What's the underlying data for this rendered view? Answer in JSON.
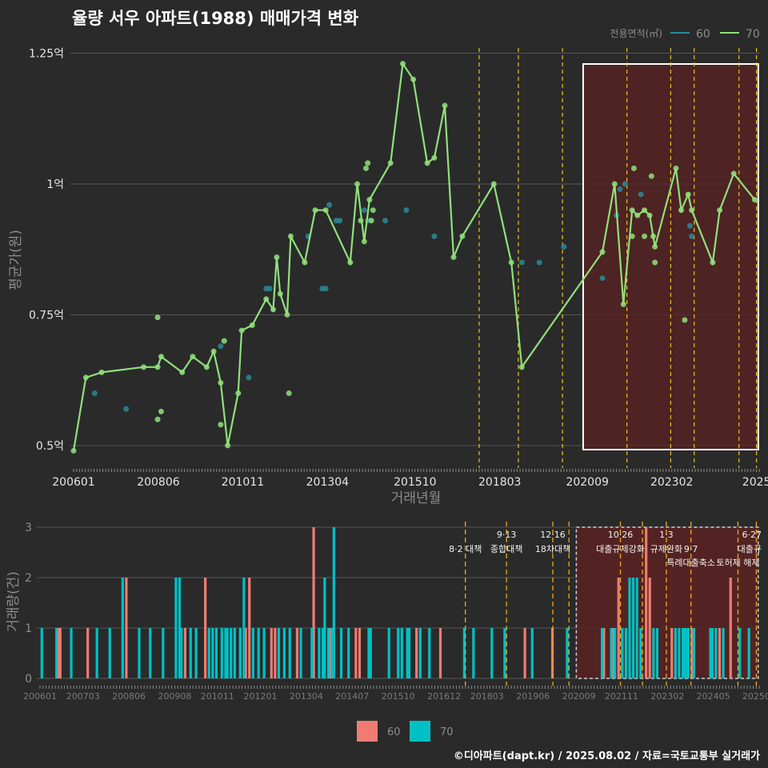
{
  "title": "율량 서우 아파트(1988) 매매가격 변화",
  "credit": "©디아파트(dapt.kr) / 2025.08.02 / 자료=국토교통부 실거래가",
  "colors": {
    "bg": "#2a2a2b",
    "grid": "#555555",
    "series60": "#2a8a96",
    "series70": "#90e07a",
    "bar60": "#f07b72",
    "bar70": "#00c0c4",
    "policy": "#e8c21e",
    "highlight": "#5a2222",
    "text": "#e6e6e6",
    "muted": "#8c8c8c"
  },
  "chart_data": [
    {
      "type": "line",
      "ylabel": "평균가(원)",
      "xlabel": "거래년월",
      "legend": {
        "title": "전용면적(㎡)",
        "placement": "top-right",
        "items": [
          "60",
          "70"
        ]
      },
      "x_range": [
        2006.0,
        2025.6
      ],
      "ylim": [
        0.48,
        1.26
      ],
      "y_ticks": [
        {
          "v": 0.5,
          "label": "0.5억"
        },
        {
          "v": 0.75,
          "label": "0.75억"
        },
        {
          "v": 1.0,
          "label": "1억"
        },
        {
          "v": 1.25,
          "label": "1.25억"
        }
      ],
      "x_ticks": [
        {
          "v": 2006.0,
          "label": "200601"
        },
        {
          "v": 2008.42,
          "label": "200806"
        },
        {
          "v": 2010.83,
          "label": "201011"
        },
        {
          "v": 2013.25,
          "label": "201304"
        },
        {
          "v": 2015.75,
          "label": "201510"
        },
        {
          "v": 2018.17,
          "label": "201803"
        },
        {
          "v": 2020.67,
          "label": "202009"
        },
        {
          "v": 2023.08,
          "label": "202302"
        },
        {
          "v": 2025.5,
          "label": "2025"
        }
      ],
      "highlight": {
        "x_start": 2020.55,
        "x_end": 2025.55
      },
      "policy_lines": [
        2017.58,
        2018.7,
        2019.96,
        2021.8,
        2023.05,
        2023.72,
        2025.0,
        2025.5
      ],
      "series": [
        {
          "name": "60",
          "points": [
            [
              2006.6,
              0.6
            ],
            [
              2007.5,
              0.57
            ],
            [
              2010.2,
              0.69
            ],
            [
              2011.0,
              0.63
            ],
            [
              2011.5,
              0.8
            ],
            [
              2011.6,
              0.8
            ],
            [
              2012.7,
              0.9
            ],
            [
              2013.1,
              0.8
            ],
            [
              2013.2,
              0.8
            ],
            [
              2013.3,
              0.96
            ],
            [
              2013.5,
              0.93
            ],
            [
              2013.6,
              0.93
            ],
            [
              2014.3,
              0.95
            ],
            [
              2014.4,
              0.93
            ],
            [
              2014.9,
              0.93
            ],
            [
              2015.5,
              0.95
            ],
            [
              2016.3,
              0.9
            ],
            [
              2018.8,
              0.85
            ],
            [
              2019.3,
              0.85
            ],
            [
              2020.0,
              0.88
            ],
            [
              2021.1,
              0.82
            ],
            [
              2021.5,
              0.94
            ],
            [
              2021.6,
              0.99
            ],
            [
              2021.75,
              1.0
            ],
            [
              2022.2,
              0.98
            ],
            [
              2023.6,
              0.92
            ],
            [
              2023.65,
              0.9
            ]
          ]
        },
        {
          "name": "70",
          "line": [
            [
              2006.0,
              0.49
            ],
            [
              2006.35,
              0.63
            ],
            [
              2006.8,
              0.64
            ],
            [
              2008.0,
              0.65
            ],
            [
              2008.4,
              0.65
            ],
            [
              2008.5,
              0.67
            ],
            [
              2009.1,
              0.64
            ],
            [
              2009.4,
              0.67
            ],
            [
              2009.8,
              0.65
            ],
            [
              2010.0,
              0.68
            ],
            [
              2010.2,
              0.62
            ],
            [
              2010.4,
              0.5
            ],
            [
              2010.7,
              0.6
            ],
            [
              2010.8,
              0.72
            ],
            [
              2011.1,
              0.73
            ],
            [
              2011.5,
              0.78
            ],
            [
              2011.7,
              0.76
            ],
            [
              2011.8,
              0.86
            ],
            [
              2011.9,
              0.79
            ],
            [
              2012.1,
              0.75
            ],
            [
              2012.2,
              0.9
            ],
            [
              2012.6,
              0.85
            ],
            [
              2012.9,
              0.95
            ],
            [
              2013.2,
              0.95
            ],
            [
              2013.9,
              0.85
            ],
            [
              2014.1,
              1.0
            ],
            [
              2014.3,
              0.89
            ],
            [
              2014.45,
              0.97
            ],
            [
              2015.05,
              1.04
            ],
            [
              2015.4,
              1.23
            ],
            [
              2015.7,
              1.2
            ],
            [
              2016.1,
              1.04
            ],
            [
              2016.3,
              1.05
            ],
            [
              2016.6,
              1.15
            ],
            [
              2016.85,
              0.86
            ],
            [
              2017.1,
              0.9
            ],
            [
              2018.0,
              1.0
            ],
            [
              2018.5,
              0.85
            ],
            [
              2018.8,
              0.65
            ],
            [
              2021.1,
              0.87
            ],
            [
              2021.45,
              1.0
            ],
            [
              2021.7,
              0.77
            ],
            [
              2021.95,
              0.95
            ],
            [
              2022.1,
              0.94
            ],
            [
              2022.3,
              0.95
            ],
            [
              2022.45,
              0.94
            ],
            [
              2022.6,
              0.88
            ],
            [
              2023.2,
              1.03
            ],
            [
              2023.35,
              0.95
            ],
            [
              2023.55,
              0.98
            ],
            [
              2023.65,
              0.95
            ],
            [
              2024.25,
              0.85
            ],
            [
              2024.45,
              0.95
            ],
            [
              2024.85,
              1.02
            ],
            [
              2025.45,
              0.97
            ]
          ],
          "extra_points": [
            [
              2008.4,
              0.745
            ],
            [
              2008.4,
              0.55
            ],
            [
              2008.5,
              0.565
            ],
            [
              2010.2,
              0.54
            ],
            [
              2010.3,
              0.7
            ],
            [
              2012.15,
              0.6
            ],
            [
              2014.2,
              0.93
            ],
            [
              2014.35,
              1.03
            ],
            [
              2014.4,
              1.04
            ],
            [
              2014.5,
              0.93
            ],
            [
              2014.55,
              0.95
            ],
            [
              2021.95,
              0.9
            ],
            [
              2022.0,
              1.03
            ],
            [
              2022.3,
              0.9
            ],
            [
              2022.5,
              1.015
            ],
            [
              2022.55,
              0.9
            ],
            [
              2022.6,
              0.85
            ],
            [
              2023.45,
              0.74
            ]
          ]
        }
      ]
    },
    {
      "type": "bar",
      "ylabel": "거래량(건)",
      "ylim": [
        0,
        3
      ],
      "y_ticks": [
        0,
        1,
        2,
        3
      ],
      "x_range": [
        2006.0,
        2025.6
      ],
      "x_ticks": [
        {
          "v": 2006.0,
          "label": "200601"
        },
        {
          "v": 2007.17,
          "label": "200703"
        },
        {
          "v": 2008.42,
          "label": "200806"
        },
        {
          "v": 2009.67,
          "label": "200908"
        },
        {
          "v": 2010.83,
          "label": "201011"
        },
        {
          "v": 2012.0,
          "label": "201201"
        },
        {
          "v": 2013.25,
          "label": "201304"
        },
        {
          "v": 2014.5,
          "label": "201407"
        },
        {
          "v": 2015.75,
          "label": "201510"
        },
        {
          "v": 2017.0,
          "label": "201612"
        },
        {
          "v": 2018.17,
          "label": "201803"
        },
        {
          "v": 2019.42,
          "label": "201906"
        },
        {
          "v": 2020.67,
          "label": "202009"
        },
        {
          "v": 2021.83,
          "label": "202111"
        },
        {
          "v": 2023.08,
          "label": "202302"
        },
        {
          "v": 2024.33,
          "label": "202405"
        },
        {
          "v": 2025.5,
          "label": "20250"
        }
      ],
      "legend": {
        "placement": "bottom",
        "items": [
          "60",
          "70"
        ]
      },
      "highlight": {
        "x_start": 2020.6,
        "x_end": 2025.55
      },
      "policy_lines": [
        2017.58,
        2018.7,
        2019.96,
        2020.4,
        2021.8,
        2022.4,
        2023.05,
        2023.72,
        2025.0,
        2025.5
      ],
      "annotations": [
        {
          "x": 2017.58,
          "row": 1,
          "text": "8·2 대책"
        },
        {
          "x": 2018.7,
          "row": 0,
          "text": "9·13"
        },
        {
          "x": 2018.7,
          "row": 1,
          "text": "종합대책"
        },
        {
          "x": 2019.96,
          "row": 0,
          "text": "12·16"
        },
        {
          "x": 2019.96,
          "row": 1,
          "text": "18차대책"
        },
        {
          "x": 2021.8,
          "row": 0,
          "text": "10·26"
        },
        {
          "x": 2021.8,
          "row": 1,
          "text": "대출규제강화"
        },
        {
          "x": 2023.05,
          "row": 0,
          "text": "1·3"
        },
        {
          "x": 2023.05,
          "row": 1,
          "text": "규제완화"
        },
        {
          "x": 2023.72,
          "row": 1,
          "text": "9·7"
        },
        {
          "x": 2023.72,
          "row": 2,
          "text": "특례대출축소"
        },
        {
          "x": 2025.0,
          "row": 2,
          "text": "토허제 해제"
        },
        {
          "x": 2025.5,
          "row": 0,
          "text": "6·27"
        },
        {
          "x": 2025.5,
          "row": 1,
          "text": "대출규"
        }
      ],
      "series": [
        {
          "name": "60",
          "bars": [
            [
              2006.5,
              1
            ],
            [
              2006.55,
              1
            ],
            [
              2007.3,
              1
            ],
            [
              2008.35,
              2
            ],
            [
              2009.95,
              1
            ],
            [
              2010.5,
              2
            ],
            [
              2011.6,
              1
            ],
            [
              2011.7,
              2
            ],
            [
              2012.3,
              1
            ],
            [
              2012.4,
              1
            ],
            [
              2013.0,
              1
            ],
            [
              2013.45,
              3
            ],
            [
              2013.9,
              1
            ],
            [
              2014.6,
              1
            ],
            [
              2014.7,
              1
            ],
            [
              2016.25,
              1
            ],
            [
              2016.9,
              1
            ],
            [
              2019.2,
              1
            ],
            [
              2019.95,
              1
            ],
            [
              2021.35,
              1
            ],
            [
              2021.6,
              1
            ],
            [
              2021.75,
              2
            ],
            [
              2022.5,
              3
            ],
            [
              2022.6,
              2
            ],
            [
              2023.2,
              1
            ],
            [
              2023.75,
              1
            ],
            [
              2024.5,
              1
            ],
            [
              2024.8,
              2
            ]
          ]
        },
        {
          "name": "70",
          "bars": [
            [
              2006.05,
              1
            ],
            [
              2006.45,
              1
            ],
            [
              2006.85,
              1
            ],
            [
              2007.55,
              1
            ],
            [
              2007.9,
              1
            ],
            [
              2008.25,
              2
            ],
            [
              2008.7,
              1
            ],
            [
              2009.0,
              1
            ],
            [
              2009.35,
              1
            ],
            [
              2009.7,
              2
            ],
            [
              2009.8,
              2
            ],
            [
              2009.85,
              1
            ],
            [
              2010.1,
              1
            ],
            [
              2010.25,
              1
            ],
            [
              2010.6,
              1
            ],
            [
              2010.7,
              1
            ],
            [
              2010.8,
              1
            ],
            [
              2010.95,
              1
            ],
            [
              2011.05,
              1
            ],
            [
              2011.1,
              1
            ],
            [
              2011.2,
              1
            ],
            [
              2011.3,
              1
            ],
            [
              2011.45,
              1
            ],
            [
              2011.55,
              2
            ],
            [
              2011.8,
              1
            ],
            [
              2011.95,
              1
            ],
            [
              2012.1,
              1
            ],
            [
              2012.5,
              1
            ],
            [
              2012.65,
              1
            ],
            [
              2012.8,
              1
            ],
            [
              2013.1,
              1
            ],
            [
              2013.4,
              1
            ],
            [
              2013.6,
              1
            ],
            [
              2013.7,
              1
            ],
            [
              2013.75,
              2
            ],
            [
              2013.85,
              1
            ],
            [
              2013.95,
              1
            ],
            [
              2014.0,
              3
            ],
            [
              2014.2,
              1
            ],
            [
              2014.4,
              1
            ],
            [
              2014.95,
              1
            ],
            [
              2015.0,
              1
            ],
            [
              2015.5,
              1
            ],
            [
              2015.75,
              1
            ],
            [
              2015.85,
              1
            ],
            [
              2016.0,
              1
            ],
            [
              2016.05,
              1
            ],
            [
              2016.35,
              1
            ],
            [
              2016.6,
              1
            ],
            [
              2017.55,
              1
            ],
            [
              2017.8,
              1
            ],
            [
              2018.3,
              1
            ],
            [
              2018.65,
              1
            ],
            [
              2019.4,
              1
            ],
            [
              2020.35,
              1
            ],
            [
              2021.3,
              1
            ],
            [
              2021.55,
              1
            ],
            [
              2021.65,
              1
            ],
            [
              2021.85,
              1
            ],
            [
              2021.95,
              1
            ],
            [
              2022.05,
              2
            ],
            [
              2022.15,
              2
            ],
            [
              2022.25,
              2
            ],
            [
              2022.35,
              1
            ],
            [
              2022.7,
              1
            ],
            [
              2022.8,
              1
            ],
            [
              2023.3,
              1
            ],
            [
              2023.4,
              1
            ],
            [
              2023.5,
              1
            ],
            [
              2023.55,
              1
            ],
            [
              2023.6,
              1
            ],
            [
              2023.65,
              1
            ],
            [
              2023.8,
              1
            ],
            [
              2024.25,
              1
            ],
            [
              2024.3,
              1
            ],
            [
              2024.4,
              1
            ],
            [
              2024.6,
              1
            ],
            [
              2025.05,
              1
            ],
            [
              2025.3,
              1
            ]
          ]
        }
      ]
    }
  ]
}
